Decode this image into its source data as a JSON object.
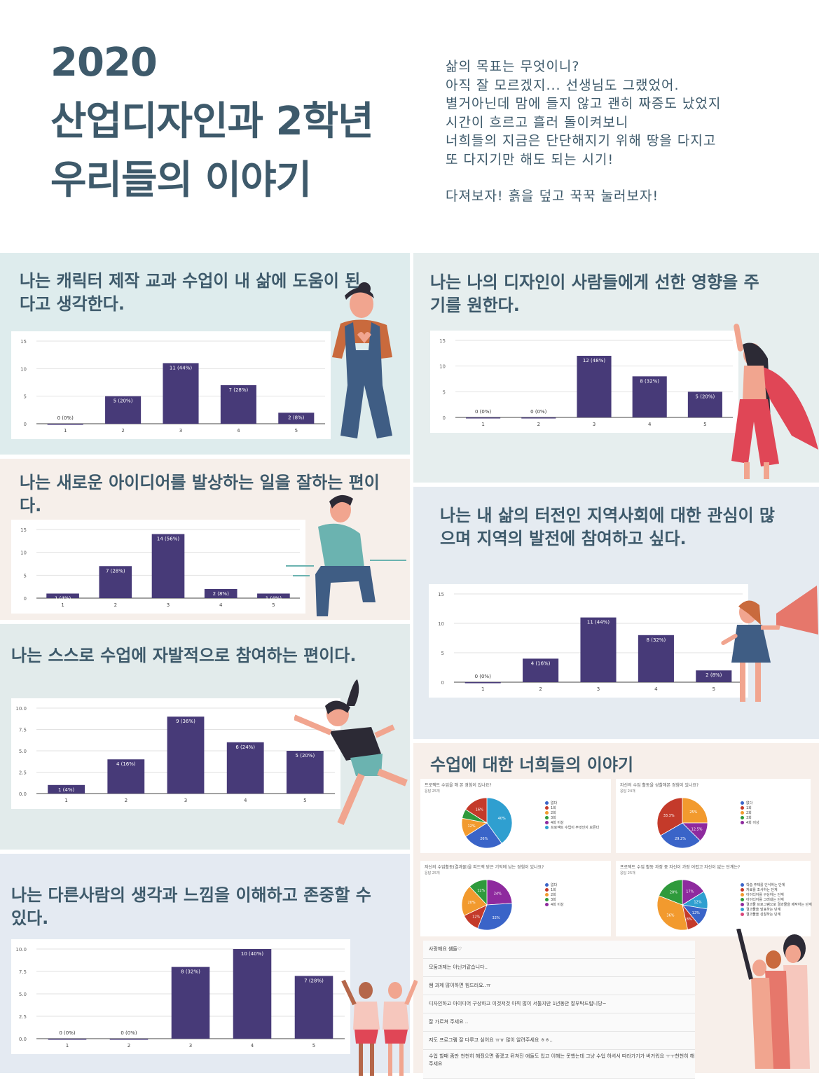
{
  "header": {
    "title_lines": [
      "2020",
      "산업디자인과 2학년",
      "우리들의 이야기"
    ],
    "message_lines": [
      "삶의 목표는 무엇이니?",
      "아직 잘 모르겠지... 선생님도 그랬었어.",
      "별거아닌데 맘에 들지 않고 괜히 짜증도 났었지",
      "시간이 흐르고 흘러 돌이켜보니",
      "너희들의 지금은 단단해지기 위해 땅을 다지고",
      "또 다지기만 해도 되는 시기!",
      "",
      "다져보자! 흙을 덮고 꾹꾹 눌러보자!"
    ]
  },
  "panels": [
    {
      "id": "p1",
      "title": "나는 캐릭터 제작 교과 수업이 내 삶에 도움이 된다고 생각한다."
    },
    {
      "id": "p2",
      "title": "나는 나의 디자인이 사람들에게 선한 영향을 주기를 원한다."
    },
    {
      "id": "p3",
      "title": "나는 새로운 아이디어를 발상하는 일을 잘하는 편이다."
    },
    {
      "id": "p4",
      "title": "나는 내 삶의 터전인 지역사회에 대한 관심이 많으며 지역의 발전에 참여하고 싶다."
    },
    {
      "id": "p5",
      "title": "나는 스스로 수업에 자발적으로 참여하는 편이다."
    },
    {
      "id": "p6",
      "title": "나는 다른사람의 생각과 느낌을 이해하고 존중할 수 있다."
    },
    {
      "id": "p7",
      "title": "수업에 대한 너희들의 이야기"
    }
  ],
  "chart_data": [
    {
      "type": "bar",
      "panel": "p1",
      "categories": [
        "1",
        "2",
        "3",
        "4",
        "5"
      ],
      "values": [
        0,
        5,
        11,
        7,
        2
      ],
      "labels": [
        "0 (0%)",
        "5 (20%)",
        "11 (44%)",
        "7 (28%)",
        "2 (8%)"
      ],
      "ylim": [
        0,
        15
      ],
      "yticks": [
        "0",
        "5",
        "10",
        "15"
      ],
      "color": "#473a78"
    },
    {
      "type": "bar",
      "panel": "p2",
      "categories": [
        "1",
        "2",
        "3",
        "4",
        "5"
      ],
      "values": [
        0,
        0,
        12,
        8,
        5
      ],
      "labels": [
        "0 (0%)",
        "0 (0%)",
        "12 (48%)",
        "8 (32%)",
        "5 (20%)"
      ],
      "ylim": [
        0,
        15
      ],
      "yticks": [
        "0",
        "5",
        "10",
        "15"
      ],
      "color": "#473a78"
    },
    {
      "type": "bar",
      "panel": "p3",
      "categories": [
        "1",
        "2",
        "3",
        "4",
        "5"
      ],
      "values": [
        1,
        7,
        14,
        2,
        1
      ],
      "labels": [
        "1 (4%)",
        "7 (28%)",
        "14 (56%)",
        "2 (8%)",
        "1 (4%)"
      ],
      "ylim": [
        0,
        15
      ],
      "yticks": [
        "0",
        "5",
        "10",
        "15"
      ],
      "color": "#473a78"
    },
    {
      "type": "bar",
      "panel": "p4",
      "categories": [
        "1",
        "2",
        "3",
        "4",
        "5"
      ],
      "values": [
        0,
        4,
        11,
        8,
        2
      ],
      "labels": [
        "0 (0%)",
        "4 (16%)",
        "11 (44%)",
        "8 (32%)",
        "2 (8%)"
      ],
      "ylim": [
        0,
        15
      ],
      "yticks": [
        "0",
        "5",
        "10",
        "15"
      ],
      "color": "#473a78"
    },
    {
      "type": "bar",
      "panel": "p5",
      "categories": [
        "1",
        "2",
        "3",
        "4",
        "5"
      ],
      "values": [
        1,
        4,
        9,
        6,
        5
      ],
      "labels": [
        "1 (4%)",
        "4 (16%)",
        "9 (36%)",
        "6 (24%)",
        "5 (20%)"
      ],
      "ylim": [
        0,
        10
      ],
      "yticks": [
        "0.0",
        "2.5",
        "5.0",
        "7.5",
        "10.0"
      ],
      "color": "#473a78"
    },
    {
      "type": "bar",
      "panel": "p6",
      "categories": [
        "1",
        "2",
        "3",
        "4",
        "5"
      ],
      "values": [
        0,
        0,
        8,
        10,
        7
      ],
      "labels": [
        "0 (0%)",
        "0 (0%)",
        "8 (32%)",
        "10 (40%)",
        "7 (28%)"
      ],
      "ylim": [
        0,
        10
      ],
      "yticks": [
        "0.0",
        "2.5",
        "5.0",
        "7.5",
        "10.0"
      ],
      "color": "#473a78"
    },
    {
      "type": "pie",
      "question": "프로젝트 수업을 해 본 경험이 있나요?",
      "responses": "응답 25개",
      "values": [
        40,
        26,
        12,
        6,
        16
      ],
      "labels": [
        "40%",
        "26%",
        "12%",
        "",
        "16%"
      ],
      "colors": [
        "#2f9fd0",
        "#3a64c8",
        "#f29a2e",
        "#2f9a3c",
        "#c43a2a"
      ],
      "legend": [
        "없다",
        "1회",
        "2회",
        "3회",
        "4회 이상",
        "프로젝트 수업이 무엇인지 모른다"
      ],
      "legend_colors": [
        "#3a64c8",
        "#c43a2a",
        "#f29a2e",
        "#2f9a3c",
        "#8e2a9e",
        "#2f9fd0"
      ]
    },
    {
      "type": "pie",
      "question": "자신의 수업 활동을 성찰해본 경험이 있나요?",
      "responses": "응답 24개",
      "values": [
        25,
        12.5,
        29.2,
        33.3
      ],
      "labels": [
        "25%",
        "12.5%",
        "29.2%",
        "33.3%"
      ],
      "colors": [
        "#f29a2e",
        "#8e2a9e",
        "#3a64c8",
        "#c43a2a"
      ],
      "legend": [
        "없다",
        "1회",
        "2회",
        "3회",
        "4회 이상"
      ],
      "legend_colors": [
        "#3a64c8",
        "#c43a2a",
        "#f29a2e",
        "#2f9a3c",
        "#8e2a9e"
      ]
    },
    {
      "type": "pie",
      "question": "자신의 수업활동(결과물)을 피드백 받은 기억에 남는 경험이 있나요?",
      "responses": "응답 25개",
      "values": [
        24,
        32,
        12,
        20,
        12
      ],
      "labels": [
        "24%",
        "32%",
        "12%",
        "20%",
        "12%"
      ],
      "colors": [
        "#8e2a9e",
        "#3a64c8",
        "#c43a2a",
        "#f29a2e",
        "#2f9a3c"
      ],
      "legend": [
        "없다",
        "1회",
        "2회",
        "3회",
        "4회 이상"
      ],
      "legend_colors": [
        "#3a64c8",
        "#c43a2a",
        "#f29a2e",
        "#2f9a3c",
        "#8e2a9e"
      ]
    },
    {
      "type": "pie",
      "question": "프로젝트 수업 활동 과정 중 자신이 가장 어렵고 자신이 없는 단계는?",
      "responses": "응답 25개",
      "values": [
        17,
        12,
        12,
        8,
        36,
        20
      ],
      "labels": [
        "17%",
        "12%",
        "12%",
        "8%",
        "36%",
        "20%"
      ],
      "colors": [
        "#8e2a9e",
        "#2f9fd0",
        "#3a64c8",
        "#c43a2a",
        "#f29a2e",
        "#2f9a3c"
      ],
      "legend": [
        "학습 주제를 인식하는 단계",
        "자료를 조사하는 단계",
        "아이디어를 구상하는 단계",
        "아이디어를 그려내는 단계",
        "결과물 프로그램으로 결과물을 제작하는 단계",
        "결과물을 발표하는 단계",
        "결과물을 성찰하는 단계"
      ],
      "legend_colors": [
        "#3a64c8",
        "#c43a2a",
        "#f29a2e",
        "#2f9a3c",
        "#8e2a9e",
        "#2f9fd0",
        "#d9477a"
      ]
    }
  ],
  "comments": [
    "사랑해요 쌤들♡",
    "모둠과제는 아닌거같습니다..",
    "쌤 과제 많이하면 힘드러요..ㅠ",
    "디자인하고 아이디어 구상하고 이것저것 아직 많이 서툴지만 1년동안 잘부탁드립니당~",
    "잘 가르쳐 주세요 ..",
    "저도 프로그램 잘 다루고 싶어요 ㅠㅠ 많이 알려주세요 ㅎㅎ..",
    "수업 할때 좀만 천천히 해줬으면 좋겠고 뒤쳐진 애들도 있고 이해는 못했는데 그냥 수업 하셔서 따라가기가 버거워요 ㅜㅜ천천히 해주세요"
  ],
  "figure_colors": {
    "skin": "#f1a58f",
    "navy": "#3f5d84",
    "red": "#e04656",
    "teal": "#6bb3b0",
    "dark": "#2c2a35"
  }
}
